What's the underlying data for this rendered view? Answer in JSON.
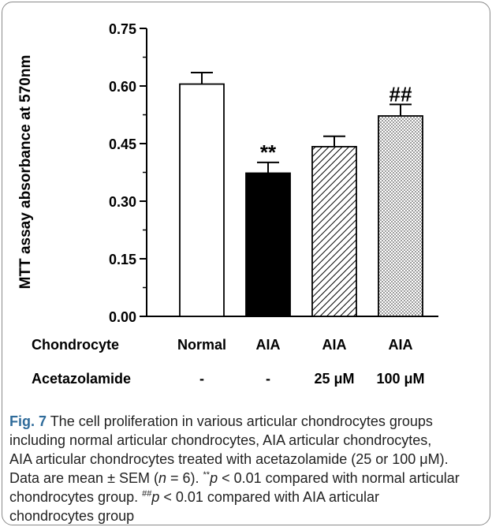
{
  "chart_data": {
    "type": "bar",
    "ylabel": "MTT assay absorbance at 570nm",
    "ylim": [
      0,
      0.75
    ],
    "yticks": [
      "0.00",
      "0.15",
      "0.30",
      "0.45",
      "0.60",
      "0.75"
    ],
    "row_labels": [
      "Chondrocyte",
      "Acetazolamide"
    ],
    "categories": [
      "Normal",
      "AIA",
      "AIA",
      "AIA"
    ],
    "treatments": [
      "-",
      "-",
      "25 μM",
      "100 μM"
    ],
    "values": [
      0.605,
      0.373,
      0.442,
      0.522
    ],
    "errors": [
      0.03,
      0.028,
      0.027,
      0.03
    ],
    "significance": [
      "",
      "**",
      "",
      "##"
    ],
    "fills": [
      "white",
      "black",
      "diagonal-hatch",
      "dotted"
    ],
    "grid": false
  },
  "caption": {
    "fig_label": "Fig. 7",
    "line1": " The cell proliferation in various articular chondrocytes groups",
    "line2": "including normal articular chondrocytes, AIA articular chondrocytes,",
    "line3": "AIA articular chondrocytes treated with acetazolamide (25 or 100 μM).",
    "line4_a": "Data are mean ± SEM (",
    "line4_n": "n",
    "line4_b": " = 6). ",
    "sig1": "**",
    "p1": "p",
    "line4_c": " < 0.01 compared with normal articular",
    "line5_a": "chondrocytes group. ",
    "sig2": "##",
    "p2": "p",
    "line5_b": " < 0.01 compared with AIA articular",
    "line6": "chondrocytes group"
  }
}
